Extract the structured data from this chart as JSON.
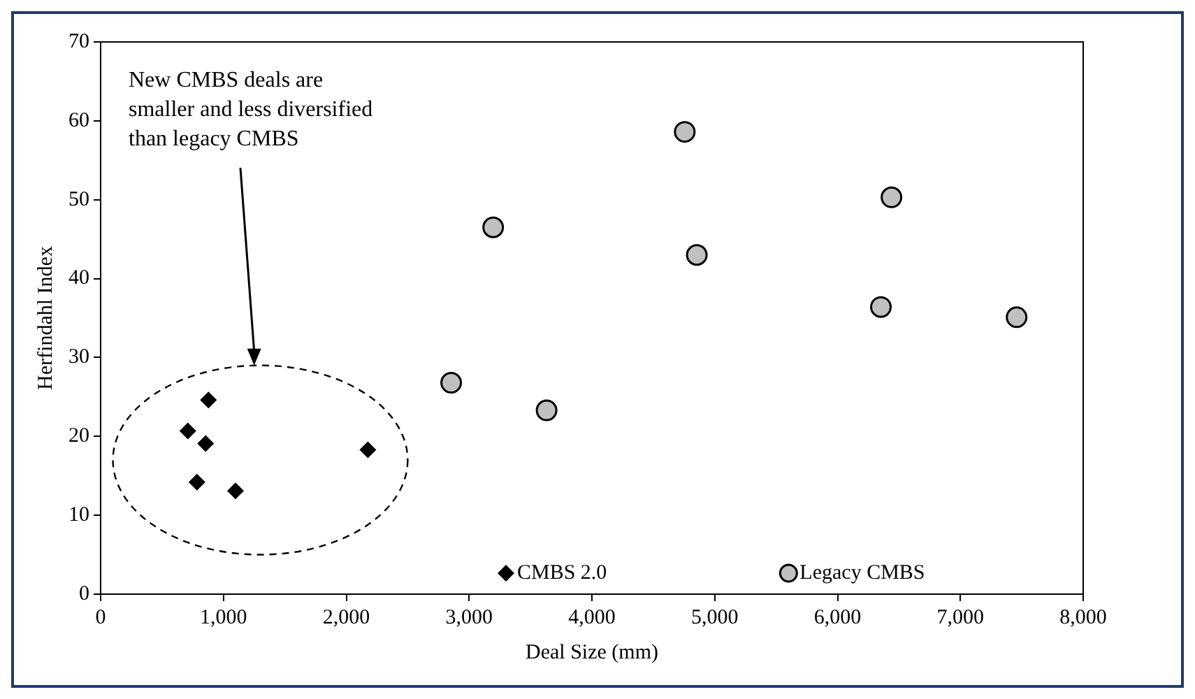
{
  "chart_data": {
    "type": "scatter",
    "xlabel": "Deal Size (mm)",
    "ylabel": "Herfindahl Index",
    "xlim": [
      0,
      8000
    ],
    "ylim": [
      0,
      70
    ],
    "xticks": [
      {
        "value": 0,
        "label": "0"
      },
      {
        "value": 1000,
        "label": "1,000"
      },
      {
        "value": 2000,
        "label": "2,000"
      },
      {
        "value": 3000,
        "label": "3,000"
      },
      {
        "value": 4000,
        "label": "4,000"
      },
      {
        "value": 5000,
        "label": "5,000"
      },
      {
        "value": 6000,
        "label": "6,000"
      },
      {
        "value": 7000,
        "label": "7,000"
      },
      {
        "value": 8000,
        "label": "8,000"
      }
    ],
    "yticks": [
      0,
      10,
      20,
      30,
      40,
      50,
      60,
      70
    ],
    "grid": false,
    "legend": "bottom",
    "annotations": [
      "New CMBS deals are smaller and less diversified than legacy CMBS"
    ],
    "series": [
      {
        "name": "CMBS 2.0",
        "color": "#000000",
        "marker": "diamond",
        "x": [
          878,
          710,
          855,
          784,
          1098,
          2176
        ],
        "values": [
          24.6,
          20.7,
          19.1,
          14.2,
          13.1,
          18.3
        ]
      },
      {
        "name": "Legacy CMBS",
        "color": "#c0c0c0",
        "marker": "circle",
        "x": [
          4756,
          3196,
          6439,
          4854,
          6353,
          7458,
          2854,
          3631
        ],
        "values": [
          58.6,
          46.5,
          50.3,
          43.0,
          36.4,
          35.1,
          26.8,
          23.3
        ]
      }
    ]
  }
}
